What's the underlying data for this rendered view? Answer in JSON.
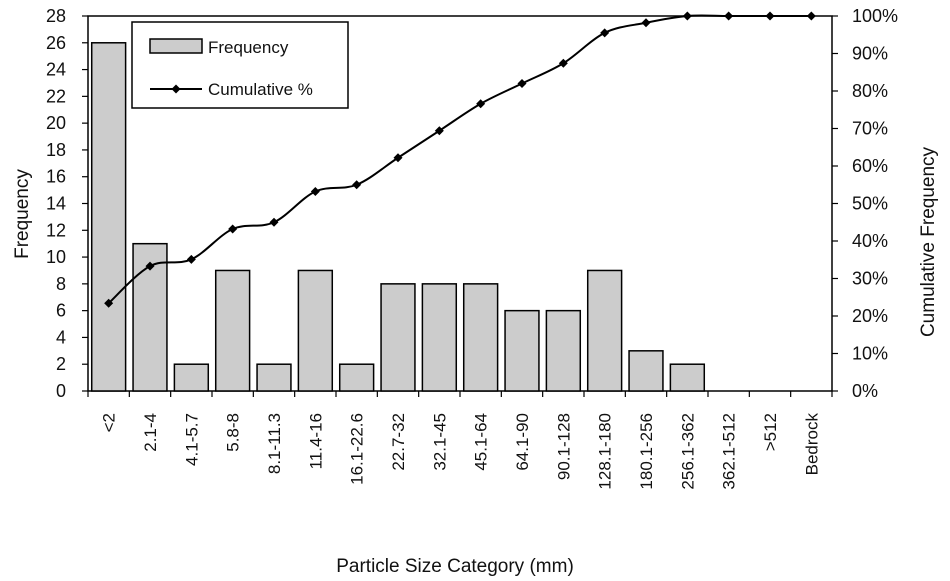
{
  "chart_data": {
    "type": "bar",
    "xlabel": "Particle Size Category (mm)",
    "ylabel": "Frequency",
    "y2label": "Cumulative Frequency",
    "categories": [
      "<2",
      "2.1-4",
      "4.1-5.7",
      "5.8-8",
      "8.1-11.3",
      "11.4-16",
      "16.1-22.6",
      "22.7-32",
      "32.1-45",
      "45.1-64",
      "64.1-90",
      "90.1-128",
      "128.1-180",
      "180.1-256",
      "256.1-362",
      "362.1-512",
      ">512",
      "Bedrock"
    ],
    "ylim": [
      0,
      28
    ],
    "y2lim": [
      0,
      100
    ],
    "yticks": [
      "0",
      "2",
      "4",
      "6",
      "8",
      "10",
      "12",
      "14",
      "16",
      "18",
      "20",
      "22",
      "24",
      "26",
      "28"
    ],
    "y2ticks": [
      "0%",
      "10%",
      "20%",
      "30%",
      "40%",
      "50%",
      "60%",
      "70%",
      "80%",
      "90%",
      "100%"
    ],
    "grid": false,
    "legend_position": "top-left",
    "series": [
      {
        "name": "Frequency",
        "kind": "bar",
        "axis": "left",
        "color": "#cccccc",
        "values": [
          26,
          11,
          2,
          9,
          2,
          9,
          2,
          8,
          8,
          8,
          6,
          6,
          9,
          3,
          2,
          0,
          0,
          0
        ]
      },
      {
        "name": "Cumulative %",
        "kind": "line",
        "axis": "right",
        "color": "#000000",
        "marker": "diamond",
        "values": [
          23.4,
          33.3,
          35.1,
          43.2,
          45.0,
          53.2,
          55.0,
          62.2,
          69.4,
          76.6,
          82.0,
          87.4,
          95.5,
          98.2,
          100,
          100,
          100,
          100
        ]
      }
    ]
  }
}
